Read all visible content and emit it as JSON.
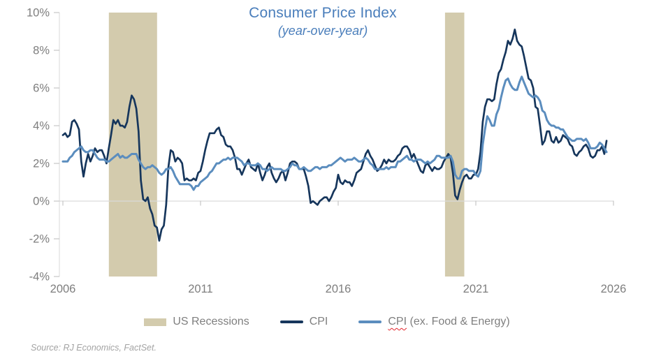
{
  "title": {
    "text": "Consumer Price Index",
    "subtitle": "(year-over-year)",
    "color": "#4A7EBB"
  },
  "legend": {
    "items": [
      {
        "label": "US Recessions",
        "swatch": "box",
        "color": "#D3CBAD"
      },
      {
        "label": "CPI",
        "swatch": "line",
        "color": "#16365C"
      },
      {
        "label_word": "CPI",
        "label_rest": " (ex. Food & Energy)",
        "swatch": "line",
        "color": "#5B8DBE",
        "spellcheck_squiggle": true,
        "squiggle_color": "#E3242B"
      }
    ]
  },
  "source": {
    "text": "Source: RJ Economics, FactSet."
  },
  "chart_data": {
    "type": "line",
    "title": "Consumer Price Index",
    "subtitle": "(year-over-year)",
    "x_unit": "monthly",
    "x_start": "2006-01",
    "x_end": "2025-10",
    "xlim": [
      2006,
      2026
    ],
    "ylim": [
      -4,
      10
    ],
    "grid": "zero-line-only",
    "legend_position": "bottom",
    "xticks": [
      {
        "value": 2006,
        "label": "2006"
      },
      {
        "value": 2011,
        "label": "2011"
      },
      {
        "value": 2016,
        "label": "2016"
      },
      {
        "value": 2021,
        "label": "2021"
      },
      {
        "value": 2026,
        "label": "2026"
      }
    ],
    "yticks": [
      {
        "value": 10,
        "label": "10%"
      },
      {
        "value": 8,
        "label": "8%"
      },
      {
        "value": 6,
        "label": "6%"
      },
      {
        "value": 4,
        "label": "4%"
      },
      {
        "value": 2,
        "label": "2%"
      },
      {
        "value": 0,
        "label": "0%"
      },
      {
        "value": -2,
        "label": "-2%"
      },
      {
        "value": -4,
        "label": "-4%"
      }
    ],
    "colors": {
      "recession": "#D3CBAD",
      "gridline": "#D9D9D9",
      "tick": "#C6C6C6",
      "axis_text": "#7E7E7E"
    },
    "recessions": [
      {
        "start": 2007.67,
        "end": 2009.42,
        "label": "US Recessions"
      },
      {
        "start": 2019.88,
        "end": 2020.58,
        "label": "US Recessions"
      }
    ],
    "series": [
      {
        "name": "CPI",
        "color": "#16365C",
        "values": [
          3.5,
          3.6,
          3.4,
          3.5,
          4.2,
          4.3,
          4.1,
          3.8,
          2.1,
          1.3,
          2.0,
          2.5,
          2.1,
          2.4,
          2.8,
          2.6,
          2.7,
          2.7,
          2.4,
          2.0,
          2.8,
          3.5,
          4.3,
          4.1,
          4.3,
          4.0,
          4.0,
          3.9,
          4.2,
          5.0,
          5.6,
          5.4,
          4.9,
          3.7,
          1.1,
          0.1,
          0.0,
          0.2,
          -0.4,
          -0.7,
          -1.3,
          -1.4,
          -2.1,
          -1.5,
          -1.3,
          -0.2,
          1.8,
          2.7,
          2.6,
          2.1,
          2.3,
          2.2,
          2.0,
          1.1,
          1.2,
          1.1,
          1.1,
          1.2,
          1.1,
          1.5,
          1.6,
          2.1,
          2.7,
          3.2,
          3.6,
          3.6,
          3.6,
          3.8,
          3.9,
          3.5,
          3.4,
          3.0,
          2.9,
          2.9,
          2.7,
          2.3,
          1.7,
          1.7,
          1.4,
          1.7,
          2.0,
          2.2,
          1.8,
          1.7,
          1.6,
          2.0,
          1.5,
          1.1,
          1.4,
          1.8,
          2.0,
          1.5,
          1.2,
          1.0,
          1.2,
          1.5,
          1.6,
          1.1,
          1.5,
          2.0,
          2.1,
          2.1,
          2.0,
          1.7,
          1.7,
          1.7,
          1.3,
          0.8,
          -0.1,
          0.0,
          -0.1,
          -0.2,
          0.0,
          0.1,
          0.2,
          0.2,
          0.0,
          0.2,
          0.5,
          0.7,
          1.4,
          1.0,
          0.9,
          1.1,
          1.0,
          1.0,
          0.8,
          1.1,
          1.5,
          1.6,
          1.7,
          2.1,
          2.5,
          2.7,
          2.4,
          2.2,
          1.9,
          1.6,
          1.7,
          1.9,
          2.2,
          2.0,
          2.2,
          2.1,
          2.1,
          2.2,
          2.4,
          2.5,
          2.8,
          2.9,
          2.9,
          2.7,
          2.3,
          2.5,
          2.2,
          1.9,
          1.6,
          1.5,
          1.9,
          2.0,
          1.8,
          1.6,
          1.8,
          1.7,
          1.7,
          1.8,
          2.1,
          2.3,
          2.5,
          2.3,
          1.5,
          0.3,
          0.1,
          0.6,
          1.0,
          1.3,
          1.4,
          1.2,
          1.2,
          1.4,
          1.4,
          1.7,
          2.6,
          4.2,
          5.0,
          5.4,
          5.4,
          5.3,
          5.4,
          6.2,
          6.8,
          7.0,
          7.5,
          7.9,
          8.5,
          8.3,
          8.6,
          9.1,
          8.5,
          8.3,
          8.2,
          7.7,
          7.1,
          6.5,
          6.4,
          6.0,
          5.0,
          4.9,
          4.0,
          3.0,
          3.2,
          3.7,
          3.7,
          3.2,
          3.1,
          3.4,
          3.1,
          3.2,
          3.5,
          3.4,
          3.3,
          3.0,
          2.9,
          2.5,
          2.4,
          2.6,
          2.7,
          2.9,
          3.0,
          2.8,
          2.4,
          2.3,
          2.4,
          2.7,
          2.7,
          2.9,
          2.5,
          3.2
        ]
      },
      {
        "name": "CPI (ex. Food & Energy)",
        "color": "#5B8DBE",
        "values": [
          2.1,
          2.1,
          2.1,
          2.3,
          2.4,
          2.6,
          2.7,
          2.8,
          2.9,
          2.7,
          2.6,
          2.6,
          2.7,
          2.7,
          2.5,
          2.3,
          2.2,
          2.2,
          2.2,
          2.1,
          2.1,
          2.2,
          2.3,
          2.4,
          2.5,
          2.3,
          2.4,
          2.3,
          2.3,
          2.4,
          2.5,
          2.5,
          2.5,
          2.2,
          2.0,
          1.8,
          1.7,
          1.8,
          1.8,
          1.9,
          1.8,
          1.7,
          1.5,
          1.4,
          1.5,
          1.7,
          1.7,
          1.8,
          1.6,
          1.3,
          1.1,
          0.9,
          0.9,
          0.9,
          0.9,
          0.9,
          0.8,
          0.6,
          0.8,
          0.8,
          1.0,
          1.1,
          1.2,
          1.3,
          1.5,
          1.6,
          1.8,
          2.0,
          2.0,
          2.1,
          2.2,
          2.2,
          2.3,
          2.2,
          2.3,
          2.3,
          2.3,
          2.2,
          2.1,
          1.9,
          2.0,
          2.0,
          1.9,
          1.9,
          1.9,
          2.0,
          1.9,
          1.7,
          1.7,
          1.6,
          1.7,
          1.8,
          1.7,
          1.7,
          1.7,
          1.7,
          1.6,
          1.6,
          1.7,
          1.8,
          2.0,
          1.9,
          1.9,
          1.7,
          1.7,
          1.8,
          1.7,
          1.6,
          1.6,
          1.7,
          1.8,
          1.8,
          1.7,
          1.8,
          1.8,
          1.8,
          1.9,
          1.9,
          2.0,
          2.1,
          2.2,
          2.3,
          2.2,
          2.1,
          2.2,
          2.2,
          2.2,
          2.3,
          2.2,
          2.1,
          2.1,
          2.2,
          2.3,
          2.2,
          2.0,
          1.9,
          1.7,
          1.7,
          1.7,
          1.7,
          1.7,
          1.8,
          1.7,
          1.8,
          1.8,
          1.8,
          2.1,
          2.1,
          2.2,
          2.3,
          2.4,
          2.2,
          2.2,
          2.1,
          2.2,
          2.2,
          2.2,
          2.1,
          2.0,
          2.1,
          2.0,
          2.1,
          2.2,
          2.4,
          2.4,
          2.3,
          2.3,
          2.3,
          2.3,
          2.4,
          2.1,
          1.4,
          1.2,
          1.2,
          1.6,
          1.7,
          1.7,
          1.6,
          1.6,
          1.6,
          1.4,
          1.3,
          1.6,
          3.0,
          3.8,
          4.5,
          4.3,
          4.0,
          4.0,
          4.6,
          4.9,
          5.5,
          6.0,
          6.4,
          6.5,
          6.2,
          6.0,
          5.9,
          5.9,
          6.3,
          6.6,
          6.3,
          6.0,
          5.7,
          5.6,
          5.5,
          5.6,
          5.5,
          5.3,
          4.8,
          4.7,
          4.3,
          4.1,
          4.0,
          4.0,
          3.9,
          3.9,
          3.8,
          3.8,
          3.6,
          3.4,
          3.3,
          3.2,
          3.2,
          3.3,
          3.3,
          3.3,
          3.2,
          3.3,
          3.1,
          2.8,
          2.8,
          2.8,
          2.9,
          3.1,
          3.0,
          2.8,
          2.6
        ]
      }
    ]
  }
}
